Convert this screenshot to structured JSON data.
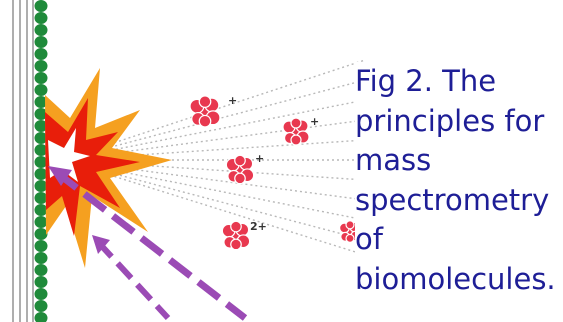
{
  "caption": "Fig 2. The\nprinciples for\nmass\nspectrometry\nof\nbiomolecules.",
  "ions": [
    {
      "id": "ion-1",
      "charge": "+"
    },
    {
      "id": "ion-2",
      "charge": "+"
    },
    {
      "id": "ion-3",
      "charge": "+"
    },
    {
      "id": "ion-4",
      "charge": "2+"
    },
    {
      "id": "ion-5",
      "charge": ""
    }
  ],
  "colors": {
    "caption": "#1e1e96",
    "ion": "#e8384f",
    "burst_outer": "#f5a020",
    "burst_inner": "#e81e0a",
    "laser": "#9b4bb5",
    "plate_beads": "#1f8a3a",
    "plate_lines": "#9a9a9a",
    "trajectory": "#b8b8b8"
  },
  "icons": {
    "plate": "sample-plate-icon",
    "burst": "laser-impact-burst-icon",
    "laser": "laser-beam-arrow-icon",
    "ion": "biomolecule-ion-icon"
  }
}
